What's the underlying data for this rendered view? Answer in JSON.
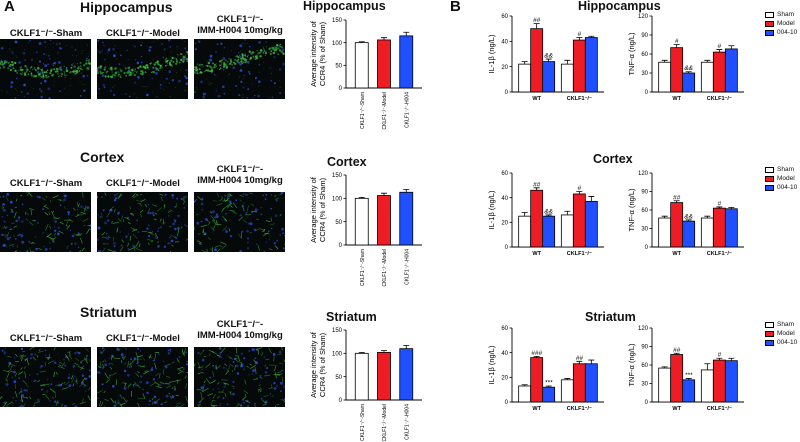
{
  "panel_a": {
    "letter": "A",
    "rows": [
      {
        "region": "Hippocampus",
        "captions": [
          "CKLF1⁻/⁻-Sham",
          "CKLF1⁻/⁻-Model",
          "CKLF1⁻/⁻-\nIMM-H004 10mg/kg"
        ],
        "image_style": "hippocampus"
      },
      {
        "region": "Cortex",
        "captions": [
          "CKLF1⁻/⁻-Sham",
          "CKLF1⁻/⁻-Model",
          "CKLF1⁻/⁻-\nIMM-H004 10mg/kg"
        ],
        "image_style": "cortex"
      },
      {
        "region": "Striatum",
        "captions": [
          "CKLF1⁻/⁻-Sham",
          "CKLF1⁻/⁻-Model",
          "CKLF1⁻/⁻-\nIMM-H004 10mg/kg"
        ],
        "image_style": "striatum"
      }
    ]
  },
  "panel_b": {
    "letter": "B"
  },
  "colors": {
    "sham": "#ffffff",
    "model": "#ee1c24",
    "h004": "#1f4fff",
    "micro_bg": "#05090a",
    "micro_green": "#3fbf3f",
    "micro_blue": "#2a4fd6"
  },
  "chart_data": [
    {
      "id": "ccr4-hippocampus",
      "type": "bar",
      "title": "Hippocampus",
      "ylabel": "Average intensity of\nCCR4 (% of Sham)",
      "ylim": [
        0,
        150
      ],
      "yticks": [
        0,
        50,
        100,
        150
      ],
      "categories": [
        "CKLF1⁻/⁻-Sham",
        "CKLF1⁻/⁻-Model",
        "CKLF1⁻/⁻-H004"
      ],
      "values": [
        100,
        106,
        115
      ],
      "errors": [
        2,
        5,
        8
      ],
      "colors": [
        "#ffffff",
        "#ee1c24",
        "#1f4fff"
      ]
    },
    {
      "id": "ccr4-cortex",
      "type": "bar",
      "title": "Cortex",
      "ylabel": "Average intensity of\nCCR4 (% of Sham)",
      "ylim": [
        0,
        150
      ],
      "yticks": [
        0,
        50,
        100,
        150
      ],
      "categories": [
        "CKLF1⁻/⁻-Sham",
        "CKLF1⁻/⁻-Model",
        "CKLF1⁻/⁻-H004"
      ],
      "values": [
        100,
        106,
        113
      ],
      "errors": [
        2,
        5,
        6
      ],
      "colors": [
        "#ffffff",
        "#ee1c24",
        "#1f4fff"
      ]
    },
    {
      "id": "ccr4-striatum",
      "type": "bar",
      "title": "Striatum",
      "ylabel": "Average intensity of\nCCR4 (% of Sham)",
      "ylim": [
        0,
        150
      ],
      "yticks": [
        0,
        50,
        100,
        150
      ],
      "categories": [
        "CKLF1⁻/⁻-Sham",
        "CKLF1⁻/⁻-Model",
        "CKLF1⁻/⁻-H004"
      ],
      "values": [
        100,
        102,
        110
      ],
      "errors": [
        2,
        4,
        7
      ],
      "colors": [
        "#ffffff",
        "#ee1c24",
        "#1f4fff"
      ]
    },
    {
      "id": "il1b-hippocampus",
      "type": "bar",
      "title": "Hippocampus",
      "ylabel": "IL-1β (ng/L)",
      "ylim": [
        0,
        60
      ],
      "yticks": [
        0,
        20,
        40,
        60
      ],
      "categories": [
        "WT",
        "CKLF1⁻/⁻"
      ],
      "series": [
        {
          "name": "Sham",
          "values": [
            22,
            22
          ],
          "errors": [
            2,
            3
          ],
          "marks": [
            "",
            ""
          ]
        },
        {
          "name": "Model",
          "values": [
            50,
            41
          ],
          "errors": [
            4,
            2
          ],
          "marks": [
            "##",
            "#"
          ]
        },
        {
          "name": "004-10",
          "values": [
            24,
            43
          ],
          "errors": [
            2,
            1
          ],
          "marks": [
            "&&",
            ""
          ]
        }
      ]
    },
    {
      "id": "tnfa-hippocampus",
      "type": "bar",
      "title": "",
      "ylabel": "TNF-α (ng/L)",
      "ylim": [
        0,
        120
      ],
      "yticks": [
        0,
        30,
        60,
        90,
        120
      ],
      "categories": [
        "WT",
        "CKLF1⁻/⁻"
      ],
      "series": [
        {
          "name": "Sham",
          "values": [
            47,
            47
          ],
          "errors": [
            3,
            3
          ],
          "marks": [
            "",
            ""
          ]
        },
        {
          "name": "Model",
          "values": [
            70,
            63
          ],
          "errors": [
            5,
            4
          ],
          "marks": [
            "#",
            "#"
          ]
        },
        {
          "name": "004-10",
          "values": [
            30,
            68
          ],
          "errors": [
            2,
            5
          ],
          "marks": [
            "&&",
            ""
          ]
        }
      ]
    },
    {
      "id": "il1b-cortex",
      "type": "bar",
      "title": "Cortex",
      "ylabel": "IL-1β (ng/L)",
      "ylim": [
        0,
        60
      ],
      "yticks": [
        0,
        20,
        40,
        60
      ],
      "categories": [
        "WT",
        "CKLF1⁻/⁻"
      ],
      "series": [
        {
          "name": "Sham",
          "values": [
            25,
            26
          ],
          "errors": [
            3,
            3
          ],
          "marks": [
            "",
            ""
          ]
        },
        {
          "name": "Model",
          "values": [
            46,
            43
          ],
          "errors": [
            2,
            2
          ],
          "marks": [
            "##",
            "#"
          ]
        },
        {
          "name": "004-10",
          "values": [
            25,
            37
          ],
          "errors": [
            1,
            4
          ],
          "marks": [
            "&&",
            ""
          ]
        }
      ]
    },
    {
      "id": "tnfa-cortex",
      "type": "bar",
      "title": "",
      "ylabel": "TNF-α (ng/L)",
      "ylim": [
        0,
        120
      ],
      "yticks": [
        0,
        30,
        60,
        90,
        120
      ],
      "categories": [
        "WT",
        "CKLF1⁻/⁻"
      ],
      "series": [
        {
          "name": "Sham",
          "values": [
            47,
            47
          ],
          "errors": [
            3,
            3
          ],
          "marks": [
            "",
            ""
          ]
        },
        {
          "name": "Model",
          "values": [
            72,
            63
          ],
          "errors": [
            3,
            2
          ],
          "marks": [
            "##",
            "#"
          ]
        },
        {
          "name": "004-10",
          "values": [
            42,
            62
          ],
          "errors": [
            2,
            2
          ],
          "marks": [
            "&&",
            ""
          ]
        }
      ]
    },
    {
      "id": "il1b-striatum",
      "type": "bar",
      "title": "Striatum",
      "ylabel": "IL-1β (ng/L)",
      "ylim": [
        0,
        60
      ],
      "yticks": [
        0,
        20,
        40,
        60
      ],
      "categories": [
        "WT",
        "CKLF1⁻/⁻"
      ],
      "series": [
        {
          "name": "Sham",
          "values": [
            13,
            18
          ],
          "errors": [
            1,
            1
          ],
          "marks": [
            "",
            ""
          ]
        },
        {
          "name": "Model",
          "values": [
            36,
            31
          ],
          "errors": [
            1,
            2
          ],
          "marks": [
            "###",
            "##"
          ]
        },
        {
          "name": "004-10",
          "values": [
            12,
            31
          ],
          "errors": [
            1,
            3
          ],
          "marks": [
            "***",
            ""
          ]
        }
      ]
    },
    {
      "id": "tnfa-striatum",
      "type": "bar",
      "title": "",
      "ylabel": "TNF-α (ng/L)",
      "ylim": [
        0,
        120
      ],
      "yticks": [
        0,
        30,
        60,
        90,
        120
      ],
      "categories": [
        "WT",
        "CKLF1⁻/⁻"
      ],
      "series": [
        {
          "name": "Sham",
          "values": [
            55,
            52
          ],
          "errors": [
            2,
            10
          ],
          "marks": [
            "",
            ""
          ]
        },
        {
          "name": "Model",
          "values": [
            77,
            68
          ],
          "errors": [
            2,
            3
          ],
          "marks": [
            "##",
            "#"
          ]
        },
        {
          "name": "004-10",
          "values": [
            36,
            67
          ],
          "errors": [
            2,
            4
          ],
          "marks": [
            "***",
            ""
          ]
        }
      ]
    }
  ],
  "legends": [
    {
      "items": [
        "Sham",
        "Model",
        "004-10"
      ]
    },
    {
      "items": [
        "Sham",
        "Model",
        "004-10"
      ]
    },
    {
      "items": [
        "Sham",
        "Model",
        "004-10"
      ]
    }
  ]
}
